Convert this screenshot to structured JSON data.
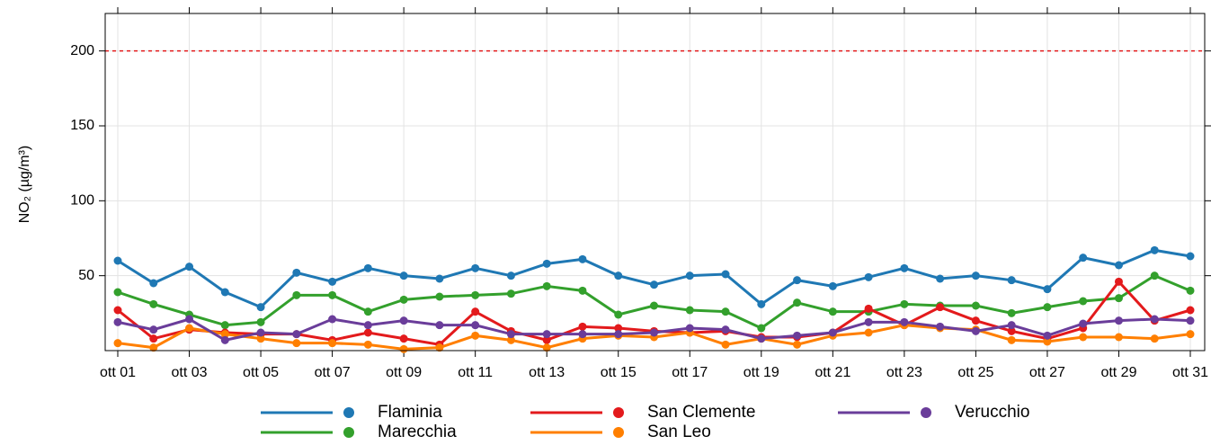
{
  "chart_data": {
    "type": "line",
    "y_label": "NO₂ (µg/m³)",
    "categories": [
      "ott 01",
      null,
      "ott 03",
      null,
      "ott 05",
      null,
      "ott 07",
      null,
      "ott 09",
      null,
      "ott 11",
      null,
      "ott 13",
      null,
      "ott 15",
      null,
      "ott 17",
      null,
      "ott 19",
      null,
      "ott 21",
      null,
      "ott 23",
      null,
      "ott 25",
      null,
      "ott 27",
      null,
      "ott 29",
      null,
      "ott 31"
    ],
    "series": [
      {
        "name": "Flaminia",
        "color": "#1f78b4",
        "values": [
          60,
          45,
          56,
          39,
          29,
          52,
          46,
          55,
          50,
          48,
          55,
          50,
          58,
          61,
          50,
          44,
          50,
          51,
          31,
          47,
          43,
          49,
          55,
          48,
          50,
          47,
          41,
          62,
          57,
          67,
          63
        ]
      },
      {
        "name": "Marecchia",
        "color": "#33a02c",
        "values": [
          39,
          31,
          24,
          17,
          19,
          37,
          37,
          26,
          34,
          36,
          37,
          38,
          43,
          40,
          24,
          30,
          27,
          26,
          15,
          32,
          26,
          26,
          31,
          30,
          30,
          25,
          29,
          33,
          35,
          50,
          40
        ]
      },
      {
        "name": "San Clemente",
        "color": "#e31a1c",
        "values": [
          27,
          8,
          14,
          12,
          11,
          11,
          7,
          12,
          8,
          4,
          26,
          13,
          7,
          16,
          15,
          13,
          12,
          13,
          9,
          9,
          12,
          28,
          17,
          29,
          20,
          13,
          8,
          15,
          46,
          20,
          27
        ]
      },
      {
        "name": "San Leo",
        "color": "#ff7f00",
        "values": [
          5,
          2,
          15,
          11,
          8,
          5,
          5,
          4,
          1,
          2,
          10,
          7,
          2,
          8,
          10,
          9,
          12,
          4,
          8,
          4,
          10,
          12,
          17,
          15,
          14,
          7,
          6,
          9,
          9,
          8,
          11
        ]
      },
      {
        "name": "Verucchio",
        "color": "#6a3d9a",
        "values": [
          19,
          14,
          21,
          7,
          12,
          11,
          21,
          17,
          20,
          17,
          17,
          11,
          11,
          11,
          11,
          12,
          15,
          14,
          8,
          10,
          12,
          19,
          19,
          16,
          13,
          17,
          10,
          18,
          20,
          21,
          20
        ]
      }
    ],
    "ylim": [
      0,
      225
    ],
    "yticks": [
      50,
      100,
      150,
      200
    ],
    "grid": true,
    "reference_line": {
      "value": 200,
      "color": "#e31a1c"
    },
    "legend": "bottom"
  }
}
